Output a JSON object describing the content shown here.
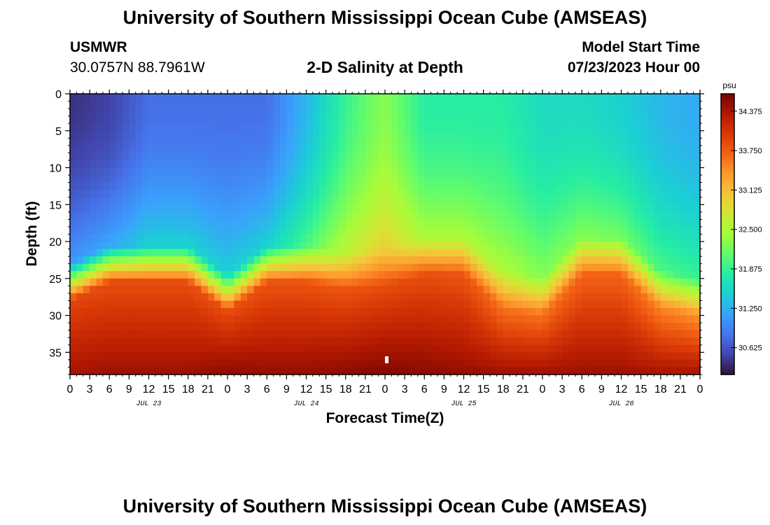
{
  "header": {
    "title": "University of Southern Mississippi Ocean Cube (AMSEAS)",
    "station_name": "USMWR",
    "coordinates": "30.0757N  88.7961W",
    "subtitle": "2-D Salinity at Depth",
    "model_start_label": "Model Start Time",
    "model_start_value": "07/23/2023 Hour 00"
  },
  "footer": {
    "title": "University of Southern Mississippi Ocean Cube (AMSEAS)"
  },
  "colors": {
    "colormap": [
      "#30123b",
      "#4145ab",
      "#4675ed",
      "#39a2fc",
      "#1bcfd4",
      "#24eca6",
      "#61fc6c",
      "#a4fc3b",
      "#d1e834",
      "#f3c63a",
      "#fe9b2d",
      "#f36315",
      "#d93806",
      "#b11901",
      "#7a0402"
    ]
  },
  "chart_data": {
    "type": "heatmap",
    "title": "2-D Salinity at Depth",
    "xlabel": "Forecast Time(Z)",
    "ylabel": "Depth (ft)",
    "x_range_hours": [
      0,
      96
    ],
    "y_range_ft": [
      0,
      38
    ],
    "x_tick_step_hours": 3,
    "x_tick_labels": [
      "0",
      "3",
      "6",
      "9",
      "12",
      "15",
      "18",
      "21",
      "0",
      "3",
      "6",
      "9",
      "12",
      "15",
      "18",
      "21",
      "0",
      "3",
      "6",
      "9",
      "12",
      "15",
      "18",
      "21",
      "0",
      "3",
      "6",
      "9",
      "12",
      "15",
      "18",
      "21",
      "0"
    ],
    "y_ticks": [
      "0",
      "5",
      "10",
      "15",
      "20",
      "25",
      "30",
      "35"
    ],
    "date_labels": [
      {
        "label": "JUL 23",
        "hour": 12
      },
      {
        "label": "JUL 24",
        "hour": 36
      },
      {
        "label": "JUL 25",
        "hour": 60
      },
      {
        "label": "JUL 26",
        "hour": 84
      }
    ],
    "colorbar": {
      "unit": "psu",
      "min": 30.2,
      "max": 34.65,
      "ticks": [
        "30.625",
        "31.250",
        "31.875",
        "32.500",
        "33.125",
        "33.750",
        "34.375"
      ]
    },
    "time_hours": [
      0,
      6,
      12,
      18,
      24,
      30,
      36,
      42,
      48,
      54,
      60,
      66,
      72,
      78,
      84,
      90,
      96
    ],
    "halocline_depth_ft": [
      26,
      23.5,
      23.5,
      23.5,
      27.5,
      23.5,
      23.5,
      24.5,
      24,
      22.5,
      22.5,
      27,
      28,
      22.5,
      22.5,
      27,
      28
    ],
    "surface_salinity_psu": [
      30.4,
      30.5,
      30.8,
      30.8,
      30.8,
      30.8,
      31.3,
      31.9,
      32.3,
      31.8,
      31.8,
      31.8,
      31.6,
      31.6,
      31.5,
      31.3,
      31.2
    ],
    "bottom_salinity_psu": [
      34.4,
      34.45,
      34.45,
      34.45,
      34.55,
      34.5,
      34.5,
      34.55,
      34.6,
      34.55,
      34.5,
      34.45,
      34.45,
      34.45,
      34.45,
      34.4,
      34.4
    ],
    "top_layer_salinity_psu": [
      33.9,
      33.85,
      33.85,
      33.85,
      33.85,
      33.8,
      33.8,
      33.8,
      33.85,
      33.85,
      33.8,
      33.6,
      33.6,
      33.7,
      33.7,
      33.5,
      33.4
    ]
  }
}
